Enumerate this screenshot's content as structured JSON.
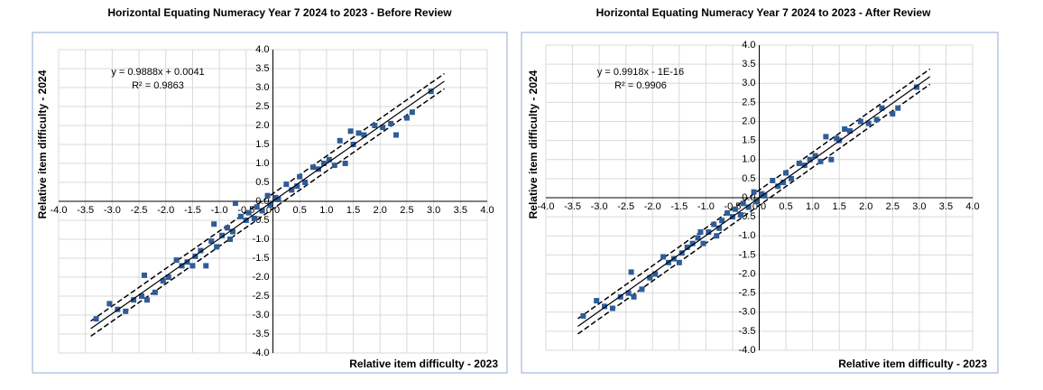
{
  "chart_data": [
    {
      "type": "scatter",
      "title": "Horizontal Equating Numeracy Year 7 2024 to 2023 - Before Review",
      "x_label": "Relative item difficulty - 2023",
      "y_label": "Relative item difficulty - 2024",
      "color": "#2f5c99",
      "grid": true,
      "xlim": [
        -4,
        4
      ],
      "ylim": [
        -4,
        4
      ],
      "xticks": [
        {
          "value": -4,
          "label": "-4.0"
        },
        {
          "value": -3.5,
          "label": "-3.5"
        },
        {
          "value": -3,
          "label": "-3.0"
        },
        {
          "value": -2.5,
          "label": "-2.5"
        },
        {
          "value": -2,
          "label": "-2.0"
        },
        {
          "value": -1.5,
          "label": "-1.5"
        },
        {
          "value": -1,
          "label": "-1.0"
        },
        {
          "value": -0.5,
          "label": "-0.5"
        },
        {
          "value": 0,
          "label": "0.0"
        },
        {
          "value": 0.5,
          "label": "0.5"
        },
        {
          "value": 1,
          "label": "1.0"
        },
        {
          "value": 1.5,
          "label": "1.5"
        },
        {
          "value": 2,
          "label": "2.0"
        },
        {
          "value": 2.5,
          "label": "2.5"
        },
        {
          "value": 3,
          "label": "3.0"
        },
        {
          "value": 3.5,
          "label": "3.5"
        },
        {
          "value": 4,
          "label": "4.0"
        }
      ],
      "yticks": [
        {
          "value": -4,
          "label": "-4.0"
        },
        {
          "value": -3.5,
          "label": "-3.5"
        },
        {
          "value": -3,
          "label": "-3.0"
        },
        {
          "value": -2.5,
          "label": "-2.5"
        },
        {
          "value": -2,
          "label": "-2.0"
        },
        {
          "value": -1.5,
          "label": "-1.5"
        },
        {
          "value": -1,
          "label": "-1.0"
        },
        {
          "value": -0.5,
          "label": "-0.5"
        },
        {
          "value": 0,
          "label": "0.0"
        },
        {
          "value": 0.5,
          "label": "0.5"
        },
        {
          "value": 1,
          "label": "1.0"
        },
        {
          "value": 1.5,
          "label": "1.5"
        },
        {
          "value": 2,
          "label": "2.0"
        },
        {
          "value": 2.5,
          "label": "2.5"
        },
        {
          "value": 3,
          "label": "3.0"
        },
        {
          "value": 3.5,
          "label": "3.5"
        },
        {
          "value": 4,
          "label": "4.0"
        }
      ],
      "x": [
        -3.3,
        -3.05,
        -2.9,
        -2.75,
        -2.6,
        -2.45,
        -2.4,
        -2.35,
        -2.2,
        -2.05,
        -1.95,
        -1.8,
        -1.7,
        -1.6,
        -1.5,
        -1.45,
        -1.35,
        -1.25,
        -1.15,
        -1.1,
        -1.05,
        -0.95,
        -0.85,
        -0.8,
        -0.75,
        -0.7,
        -0.6,
        -0.5,
        -0.45,
        -0.35,
        -0.3,
        -0.2,
        -0.1,
        -0.05,
        0.05,
        0.1,
        0.25,
        0.35,
        0.45,
        0.5,
        0.6,
        0.75,
        0.85,
        0.95,
        1.05,
        1.15,
        1.25,
        1.35,
        1.45,
        1.5,
        1.6,
        1.7,
        1.9,
        2.05,
        2.2,
        2.3,
        2.5,
        2.6,
        2.95
      ],
      "values": [
        -3.1,
        -2.7,
        -2.85,
        -2.9,
        -2.6,
        -2.5,
        -1.95,
        -2.6,
        -2.4,
        -2.1,
        -2.0,
        -1.55,
        -1.7,
        -1.6,
        -1.7,
        -1.45,
        -1.3,
        -1.7,
        -1.05,
        -0.6,
        -1.2,
        -0.9,
        -0.7,
        -1.0,
        -0.8,
        -0.05,
        -0.4,
        -0.5,
        -0.3,
        -0.45,
        -0.15,
        -0.25,
        0.15,
        -0.1,
        0.1,
        0.05,
        0.45,
        0.3,
        0.4,
        0.65,
        0.5,
        0.9,
        0.85,
        1.0,
        1.1,
        0.95,
        1.6,
        1.0,
        1.85,
        1.5,
        1.8,
        1.75,
        2.0,
        1.95,
        2.05,
        1.75,
        2.2,
        2.35,
        2.9
      ],
      "trendline": {
        "slope": 0.9888,
        "intercept": 0.0041,
        "x_range": [
          -3.4,
          3.2
        ],
        "band": 0.2,
        "equation": "y = 0.9888x + 0.0041",
        "r2": "R² = 0.9863"
      }
    },
    {
      "type": "scatter",
      "title": "Horizontal Equating Numeracy Year 7 2024 to 2023 - After Review",
      "x_label": "Relative item difficulty - 2023",
      "y_label": "Relative item difficulty - 2024",
      "color": "#2f5c99",
      "grid": true,
      "xlim": [
        -4,
        4
      ],
      "ylim": [
        -4,
        4
      ],
      "xticks": [
        {
          "value": -4,
          "label": "-4.0"
        },
        {
          "value": -3.5,
          "label": "-3.5"
        },
        {
          "value": -3,
          "label": "-3.0"
        },
        {
          "value": -2.5,
          "label": "-2.5"
        },
        {
          "value": -2,
          "label": "-2.0"
        },
        {
          "value": -1.5,
          "label": "-1.5"
        },
        {
          "value": -1,
          "label": "-1.0"
        },
        {
          "value": -0.5,
          "label": "-0.5"
        },
        {
          "value": 0,
          "label": "0.0"
        },
        {
          "value": 0.5,
          "label": "0.5"
        },
        {
          "value": 1,
          "label": "1.0"
        },
        {
          "value": 1.5,
          "label": "1.5"
        },
        {
          "value": 2,
          "label": "2.0"
        },
        {
          "value": 2.5,
          "label": "2.5"
        },
        {
          "value": 3,
          "label": "3.0"
        },
        {
          "value": 3.5,
          "label": "3.5"
        },
        {
          "value": 4,
          "label": "4.0"
        }
      ],
      "yticks": [
        {
          "value": -4,
          "label": "-4.0"
        },
        {
          "value": -3.5,
          "label": "-3.5"
        },
        {
          "value": -3,
          "label": "-3.0"
        },
        {
          "value": -2.5,
          "label": "-2.5"
        },
        {
          "value": -2,
          "label": "-2.0"
        },
        {
          "value": -1.5,
          "label": "-1.5"
        },
        {
          "value": -1,
          "label": "-1.0"
        },
        {
          "value": -0.5,
          "label": "-0.5"
        },
        {
          "value": 0,
          "label": "0.0"
        },
        {
          "value": 0.5,
          "label": "0.5"
        },
        {
          "value": 1,
          "label": "1.0"
        },
        {
          "value": 1.5,
          "label": "1.5"
        },
        {
          "value": 2,
          "label": "2.0"
        },
        {
          "value": 2.5,
          "label": "2.5"
        },
        {
          "value": 3,
          "label": "3.0"
        },
        {
          "value": 3.5,
          "label": "3.5"
        },
        {
          "value": 4,
          "label": "4.0"
        }
      ],
      "x": [
        -3.3,
        -3.05,
        -2.9,
        -2.75,
        -2.6,
        -2.45,
        -2.4,
        -2.35,
        -2.2,
        -2.05,
        -1.95,
        -1.8,
        -1.7,
        -1.6,
        -1.5,
        -1.45,
        -1.35,
        -1.25,
        -1.15,
        -1.1,
        -1.05,
        -0.95,
        -0.85,
        -0.8,
        -0.75,
        -0.7,
        -0.6,
        -0.5,
        -0.45,
        -0.35,
        -0.3,
        -0.2,
        -0.1,
        -0.05,
        0.05,
        0.1,
        0.25,
        0.35,
        0.45,
        0.5,
        0.6,
        0.75,
        0.85,
        0.95,
        1.05,
        1.15,
        1.25,
        1.35,
        1.45,
        1.5,
        1.6,
        1.7,
        1.9,
        2.05,
        2.2,
        2.3,
        2.5,
        2.6,
        2.95
      ],
      "values": [
        -3.1,
        -2.7,
        -2.85,
        -2.9,
        -2.6,
        -2.5,
        -1.95,
        -2.6,
        -2.4,
        -2.1,
        -2.0,
        -1.55,
        -1.7,
        -1.6,
        -1.7,
        -1.45,
        -1.3,
        -1.2,
        -1.05,
        -0.9,
        -1.2,
        -0.9,
        -0.7,
        -1.0,
        -0.8,
        -0.6,
        -0.4,
        -0.5,
        -0.3,
        -0.45,
        -0.15,
        -0.25,
        0.15,
        -0.1,
        0.1,
        0.05,
        0.45,
        0.3,
        0.4,
        0.65,
        0.5,
        0.9,
        0.85,
        1.0,
        1.1,
        0.95,
        1.6,
        1.0,
        1.55,
        1.5,
        1.8,
        1.75,
        2.0,
        1.95,
        2.05,
        2.35,
        2.2,
        2.35,
        2.9
      ],
      "trendline": {
        "slope": 0.9918,
        "intercept": 0,
        "x_range": [
          -3.4,
          3.2
        ],
        "band": 0.2,
        "equation": "y = 0.9918x - 1E-16",
        "r2": "R² = 0.9906"
      }
    }
  ]
}
